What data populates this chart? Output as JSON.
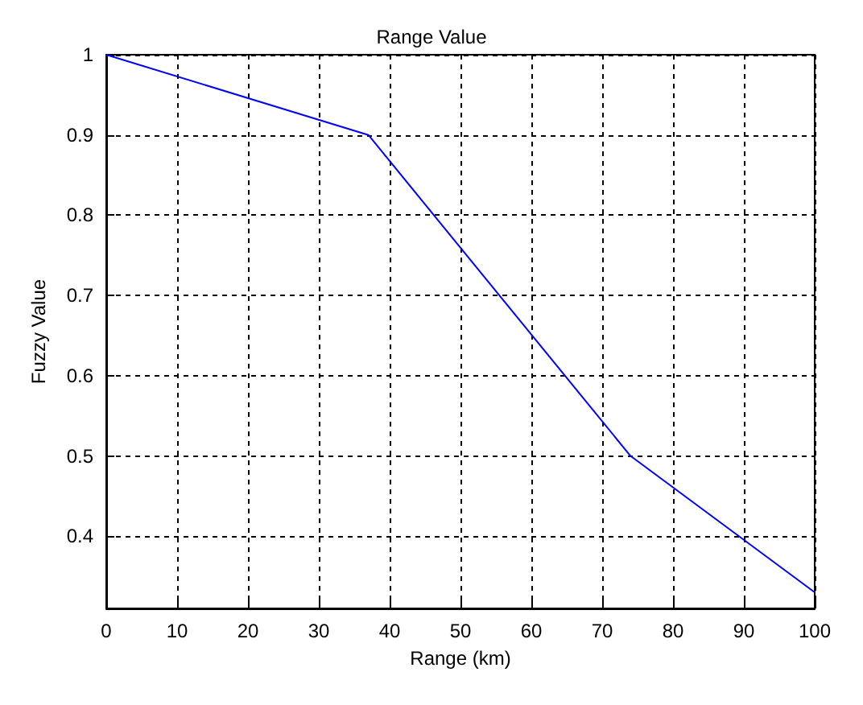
{
  "chart_data": {
    "type": "line",
    "title": "Range Value",
    "xlabel": "Range (km)",
    "ylabel": "Fuzzy Value",
    "x": [
      0,
      37,
      74,
      100
    ],
    "series": [
      {
        "color": "#0000ff",
        "values": [
          1,
          0.9,
          0.5,
          0.33
        ]
      }
    ],
    "xlim": [
      0,
      100
    ],
    "xticks": [
      0,
      10,
      20,
      30,
      40,
      50,
      60,
      70,
      80,
      90,
      100
    ],
    "ylim": [
      0.31,
      1
    ],
    "yticks": [
      0.4,
      0.5,
      0.6,
      0.7,
      0.8,
      0.9,
      1
    ],
    "grid": true,
    "line_style": "solid",
    "marker": "none"
  }
}
